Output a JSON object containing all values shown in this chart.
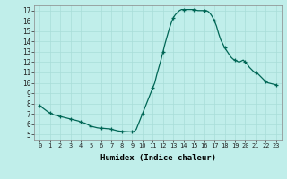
{
  "xlabel": "Humidex (Indice chaleur)",
  "ylabel": "",
  "background_color": "#c0eeea",
  "line_color": "#006655",
  "marker_color": "#006655",
  "grid_color": "#a8ddd8",
  "xlim": [
    -0.5,
    23.5
  ],
  "ylim": [
    4.5,
    17.5
  ],
  "yticks": [
    5,
    6,
    7,
    8,
    9,
    10,
    11,
    12,
    13,
    14,
    15,
    16,
    17
  ],
  "xticks": [
    0,
    1,
    2,
    3,
    4,
    5,
    6,
    7,
    8,
    9,
    10,
    11,
    12,
    13,
    14,
    15,
    16,
    17,
    18,
    19,
    20,
    21,
    22,
    23
  ],
  "x": [
    0,
    0.2,
    0.4,
    0.6,
    0.8,
    1,
    1.2,
    1.4,
    1.6,
    1.8,
    2,
    2.2,
    2.4,
    2.6,
    2.8,
    3,
    3.2,
    3.4,
    3.6,
    3.8,
    4,
    4.2,
    4.4,
    4.6,
    4.8,
    5,
    5.2,
    5.4,
    5.6,
    5.8,
    6,
    6.2,
    6.4,
    6.6,
    6.8,
    7,
    7.2,
    7.4,
    7.6,
    7.8,
    8,
    8.2,
    8.4,
    8.6,
    8.8,
    9,
    9.2,
    9.4,
    9.6,
    9.8,
    10,
    10.2,
    10.4,
    10.6,
    10.8,
    11,
    11.2,
    11.4,
    11.6,
    11.8,
    12,
    12.2,
    12.4,
    12.6,
    12.8,
    13,
    13.2,
    13.4,
    13.6,
    13.8,
    14,
    14.2,
    14.4,
    14.6,
    14.8,
    15,
    15.2,
    15.4,
    15.6,
    15.8,
    16,
    16.2,
    16.4,
    16.6,
    16.8,
    17,
    17.2,
    17.4,
    17.6,
    17.8,
    18,
    18.2,
    18.4,
    18.6,
    18.8,
    19,
    19.2,
    19.4,
    19.6,
    19.8,
    20,
    20.2,
    20.4,
    20.6,
    20.8,
    21,
    21.2,
    21.4,
    21.6,
    21.8,
    22,
    22.2,
    22.4,
    22.6,
    22.8,
    23
  ],
  "y": [
    7.8,
    7.65,
    7.5,
    7.35,
    7.2,
    7.1,
    7.0,
    6.9,
    6.85,
    6.8,
    6.75,
    6.7,
    6.65,
    6.6,
    6.55,
    6.5,
    6.45,
    6.4,
    6.35,
    6.3,
    6.2,
    6.15,
    6.1,
    6.0,
    5.9,
    5.8,
    5.75,
    5.7,
    5.65,
    5.62,
    5.6,
    5.6,
    5.58,
    5.56,
    5.55,
    5.5,
    5.45,
    5.4,
    5.35,
    5.32,
    5.3,
    5.28,
    5.27,
    5.26,
    5.25,
    5.25,
    5.3,
    5.5,
    6.0,
    6.5,
    7.0,
    7.5,
    8.0,
    8.5,
    9.0,
    9.5,
    10.0,
    10.8,
    11.5,
    12.2,
    13.0,
    13.8,
    14.5,
    15.2,
    15.8,
    16.3,
    16.6,
    16.8,
    17.0,
    17.1,
    17.1,
    17.1,
    17.1,
    17.1,
    17.1,
    17.1,
    17.05,
    17.0,
    17.0,
    17.0,
    17.0,
    17.0,
    16.9,
    16.7,
    16.4,
    16.0,
    15.5,
    14.8,
    14.2,
    13.8,
    13.4,
    13.1,
    12.8,
    12.5,
    12.3,
    12.2,
    12.1,
    12.0,
    12.1,
    12.2,
    12.0,
    11.8,
    11.5,
    11.3,
    11.1,
    11.0,
    10.9,
    10.7,
    10.5,
    10.3,
    10.1,
    10.0,
    9.95,
    9.9,
    9.85,
    9.8
  ],
  "marker_x": [
    0,
    1,
    2,
    3,
    4,
    5,
    6,
    7,
    8,
    9,
    10,
    11,
    12,
    13,
    14,
    15,
    16,
    17,
    18,
    19,
    20,
    21,
    22,
    23
  ],
  "marker_y": [
    7.8,
    7.1,
    6.75,
    6.5,
    6.2,
    5.8,
    5.6,
    5.5,
    5.3,
    5.25,
    7.0,
    9.5,
    13.0,
    16.3,
    17.1,
    17.1,
    17.0,
    16.0,
    13.4,
    12.2,
    12.0,
    11.0,
    10.1,
    9.8
  ]
}
